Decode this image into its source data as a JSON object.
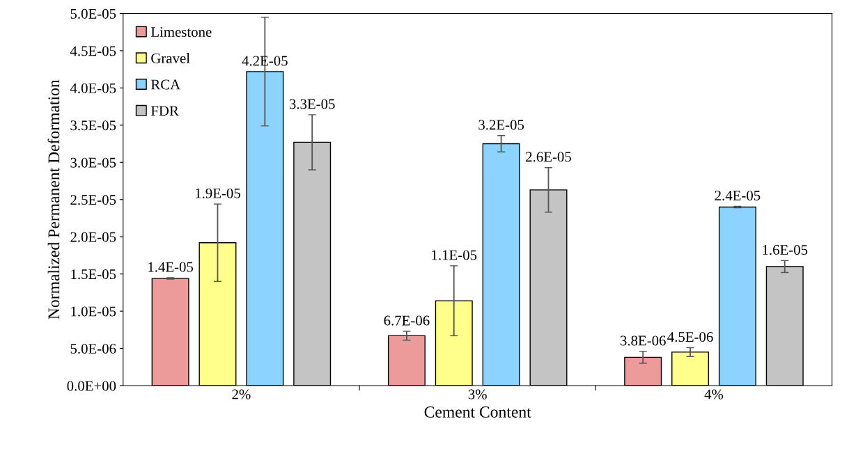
{
  "chart_data": {
    "type": "bar",
    "xlabel": "Cement Content",
    "ylabel": "Normalized Permanent Deformation",
    "categories": [
      "2%",
      "3%",
      "4%"
    ],
    "series": [
      {
        "name": "Limestone",
        "color": "#ec9a9a",
        "values": [
          1.44e-05,
          6.7e-06,
          3.8e-06
        ],
        "errors": [
          1e-07,
          6e-07,
          8e-07
        ],
        "value_labels": [
          "1.4E-05",
          "6.7E-06",
          "3.8E-06"
        ]
      },
      {
        "name": "Gravel",
        "color": "#ffff8c",
        "values": [
          1.92e-05,
          1.14e-05,
          4.5e-06
        ],
        "errors": [
          5.2e-06,
          4.7e-06,
          6e-07
        ],
        "value_labels": [
          "1.9E-05",
          "1.1E-05",
          "4.5E-06"
        ]
      },
      {
        "name": "RCA",
        "color": "#8cd4ff",
        "values": [
          4.22e-05,
          3.25e-05,
          2.4e-05
        ],
        "errors": [
          7.3e-06,
          1.1e-06,
          1e-07
        ],
        "value_labels": [
          "4.2E-05",
          "3.2E-05",
          "2.4E-05"
        ]
      },
      {
        "name": "FDR",
        "color": "#c4c4c4",
        "values": [
          3.27e-05,
          2.63e-05,
          1.6e-05
        ],
        "errors": [
          3.7e-06,
          3e-06,
          8e-07
        ],
        "value_labels": [
          "3.3E-05",
          "2.6E-05",
          "1.6E-05"
        ]
      }
    ],
    "ylim": [
      0,
      5e-05
    ],
    "yticks": [
      {
        "value": 0,
        "label": "0.0E+00"
      },
      {
        "value": 5e-06,
        "label": "5.0E-06"
      },
      {
        "value": 1e-05,
        "label": "1.0E-05"
      },
      {
        "value": 1.5e-05,
        "label": "1.5E-05"
      },
      {
        "value": 2e-05,
        "label": "2.0E-05"
      },
      {
        "value": 2.5e-05,
        "label": "2.5E-05"
      },
      {
        "value": 3e-05,
        "label": "3.0E-05"
      },
      {
        "value": 3.5e-05,
        "label": "3.5E-05"
      },
      {
        "value": 4e-05,
        "label": "4.0E-05"
      },
      {
        "value": 4.5e-05,
        "label": "4.5E-05"
      },
      {
        "value": 5e-05,
        "label": "5.0E-05"
      }
    ],
    "legend": "top left",
    "grid": false
  }
}
